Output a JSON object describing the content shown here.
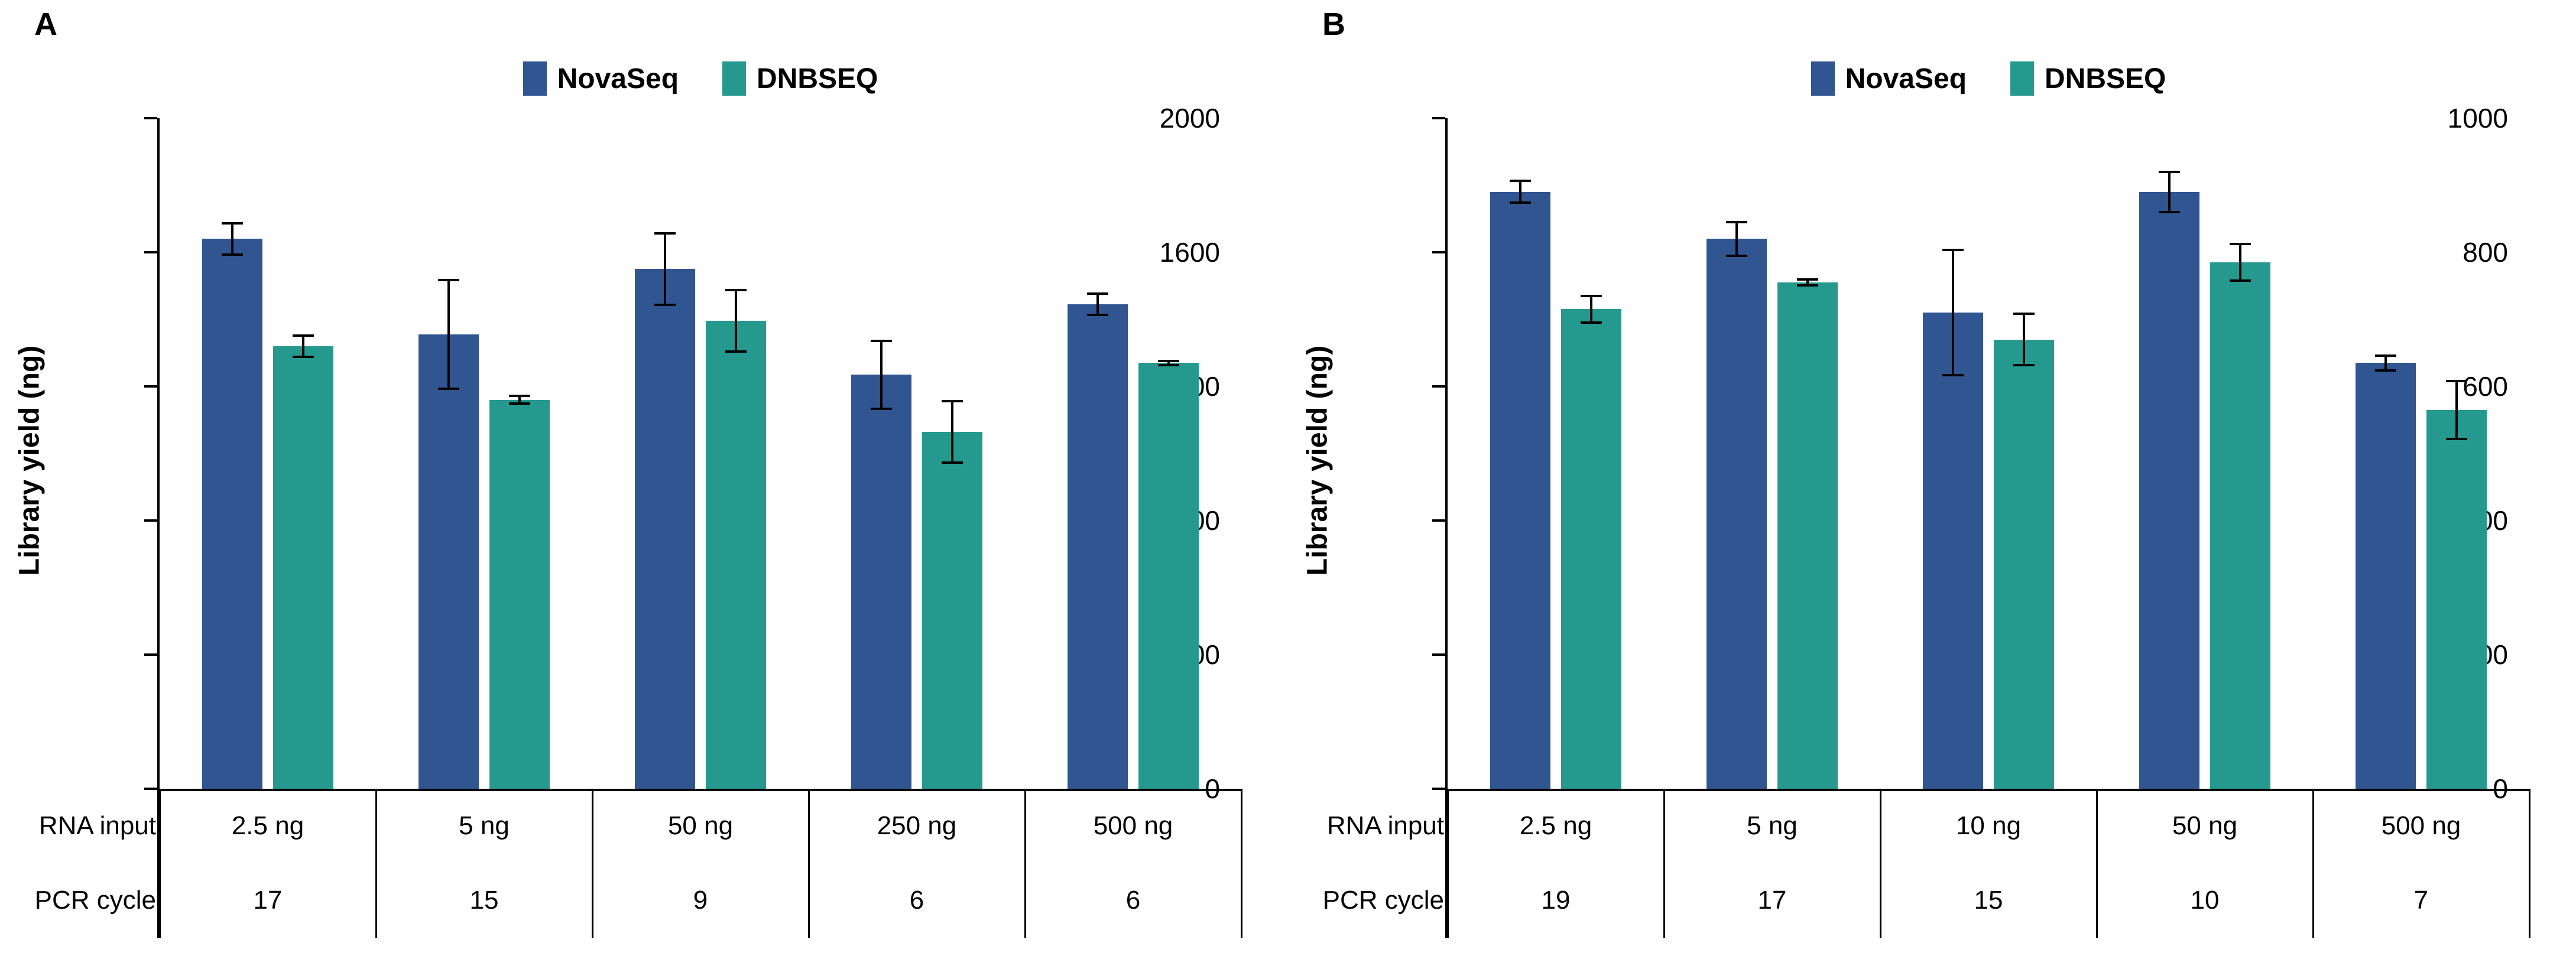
{
  "figure": {
    "background": "#ffffff",
    "axis_color": "#000000"
  },
  "legend": {
    "items": [
      {
        "label": "NovaSeq",
        "color": "#305590"
      },
      {
        "label": "DNBSEQ",
        "color": "#26998F"
      }
    ]
  },
  "chart_data": [
    {
      "type": "bar",
      "panel_label": "A",
      "ylabel": "Library yield (ng)",
      "ylim": [
        0,
        2000
      ],
      "yticks": [
        0,
        400,
        800,
        1200,
        1600,
        2000
      ],
      "grid": false,
      "legend_position": "top",
      "row_headers": [
        "RNA input",
        "PCR cycle"
      ],
      "categories": [
        "2.5 ng",
        "5 ng",
        "50 ng",
        "250 ng",
        "500 ng"
      ],
      "pcr_cycles": [
        "17",
        "15",
        "9",
        "6",
        "6"
      ],
      "series": [
        {
          "name": "NovaSeq",
          "color": "#305590",
          "values": [
            1640,
            1355,
            1550,
            1235,
            1445
          ],
          "errors": [
            50,
            165,
            110,
            105,
            35
          ]
        },
        {
          "name": "DNBSEQ",
          "color": "#26998F",
          "values": [
            1320,
            1160,
            1395,
            1065,
            1270
          ],
          "errors": [
            35,
            15,
            95,
            95,
            10
          ]
        }
      ]
    },
    {
      "type": "bar",
      "panel_label": "B",
      "ylabel": "Library yield (ng)",
      "ylim": [
        0,
        1000
      ],
      "yticks": [
        0,
        200,
        400,
        600,
        800,
        1000
      ],
      "grid": false,
      "legend_position": "top",
      "row_headers": [
        "RNA input",
        "PCR cycle"
      ],
      "categories": [
        "2.5 ng",
        "5 ng",
        "10 ng",
        "50 ng",
        "500 ng"
      ],
      "pcr_cycles": [
        "19",
        "17",
        "15",
        "10",
        "7"
      ],
      "series": [
        {
          "name": "NovaSeq",
          "color": "#305590",
          "values": [
            890,
            820,
            710,
            890,
            635
          ],
          "errors": [
            18,
            27,
            95,
            32,
            13
          ]
        },
        {
          "name": "DNBSEQ",
          "color": "#26998F",
          "values": [
            715,
            755,
            670,
            785,
            565
          ],
          "errors": [
            22,
            6,
            40,
            29,
            45
          ]
        }
      ]
    }
  ]
}
